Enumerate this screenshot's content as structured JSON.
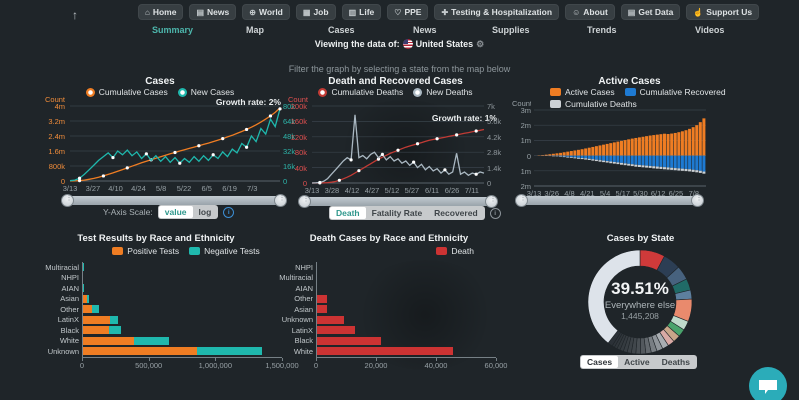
{
  "header": {
    "scroll_top_icon": "↑",
    "nav_buttons": [
      {
        "icon": "⌂",
        "label": "Home"
      },
      {
        "icon": "▤",
        "label": "News"
      },
      {
        "icon": "⊕",
        "label": "World"
      },
      {
        "icon": "▦",
        "label": "Job"
      },
      {
        "icon": "▥",
        "label": "Life"
      },
      {
        "icon": "♡",
        "label": "PPE"
      },
      {
        "icon": "✚",
        "label": "Testing & Hospitalization"
      },
      {
        "icon": "☺",
        "label": "About"
      },
      {
        "icon": "▤",
        "label": "Get Data"
      },
      {
        "icon": "☝",
        "label": "Support Us"
      }
    ],
    "tabs": [
      "Summary",
      "Map",
      "Cases",
      "News",
      "Supplies",
      "Trends",
      "Videos"
    ],
    "active_tab": "Summary",
    "viewing": {
      "label": "Viewing the data of:",
      "country": "United States",
      "gear_icon": "⚙"
    }
  },
  "filter_hint": "Filter the graph by selecting a state from the map below",
  "controls": {
    "y_axis_scale": {
      "label": "Y-Axis Scale:",
      "options": [
        "value",
        "log"
      ],
      "selected": "value"
    },
    "death_tabs": {
      "options": [
        "Death",
        "Fatality Rate",
        "Recovered"
      ],
      "selected": "Death"
    },
    "state_tabs": {
      "options": [
        "Cases",
        "Active",
        "Deaths"
      ],
      "selected": "Cases"
    }
  },
  "chart_data": [
    {
      "type": "line",
      "title": "Cases",
      "growth_label": "Growth rate: 2%",
      "y_left": {
        "title": "Count",
        "ticks": [
          "4m",
          "3.2m",
          "2.4m",
          "1.6m",
          "800k",
          "0"
        ],
        "max": 4,
        "color": "#f08c3a"
      },
      "y_right": {
        "ticks": [
          "80k",
          "64k",
          "48k",
          "32k",
          "16k",
          "0"
        ],
        "max": 80,
        "color": "#2eb5aa"
      },
      "x_ticks": [
        "3/13",
        "3/27",
        "4/10",
        "4/24",
        "5/8",
        "5/22",
        "6/5",
        "6/19",
        "7/3"
      ],
      "series": [
        {
          "name": "Cumulative Cases",
          "axis": "left",
          "color": "#ef7d23",
          "values": [
            0,
            0.01,
            0.02,
            0.05,
            0.09,
            0.14,
            0.2,
            0.27,
            0.35,
            0.43,
            0.52,
            0.61,
            0.7,
            0.79,
            0.88,
            0.97,
            1.05,
            1.13,
            1.21,
            1.29,
            1.37,
            1.45,
            1.52,
            1.6,
            1.67,
            1.74,
            1.81,
            1.88,
            1.95,
            2.02,
            2.1,
            2.18,
            2.26,
            2.35,
            2.44,
            2.54,
            2.64,
            2.75,
            2.87,
            3.0,
            3.14,
            3.3,
            3.47,
            3.66,
            3.9
          ]
        },
        {
          "name": "New Cases",
          "axis": "right",
          "color": "#1fb8ad",
          "values": [
            0.3,
            1,
            3,
            7,
            12,
            17,
            22,
            26,
            30,
            25,
            32,
            28,
            33,
            27,
            31,
            24,
            29,
            22,
            27,
            21,
            26,
            20,
            25,
            19,
            24,
            20,
            26,
            21,
            27,
            22,
            28,
            24,
            31,
            26,
            34,
            30,
            40,
            36,
            48,
            42,
            56,
            50,
            66,
            58,
            77
          ]
        }
      ]
    },
    {
      "type": "line",
      "title": "Death and Recovered Cases",
      "growth_label": "Growth rate: 1%",
      "y_left": {
        "title": "Count",
        "ticks": [
          "200k",
          "160k",
          "120k",
          "80k",
          "40k",
          "0"
        ],
        "max": 200,
        "color": "#e05050"
      },
      "y_right": {
        "ticks": [
          "7k",
          "5.6k",
          "4.2k",
          "2.8k",
          "1.4k",
          "0"
        ],
        "max": 7,
        "color": "#8f979c"
      },
      "x_ticks": [
        "3/13",
        "3/28",
        "4/12",
        "4/27",
        "5/12",
        "5/27",
        "6/11",
        "6/26",
        "7/11"
      ],
      "series": [
        {
          "name": "Cumulative Deaths",
          "axis": "left",
          "color": "#c23b35",
          "values": [
            0,
            0.1,
            0.2,
            0.5,
            1,
            2,
            4,
            7,
            11,
            15,
            20,
            26,
            32,
            38,
            44,
            50,
            56,
            62,
            67,
            72,
            77,
            81,
            85,
            89,
            93,
            96,
            99,
            102,
            105,
            108,
            111,
            113,
            115,
            117,
            119,
            121,
            123,
            125,
            127,
            129,
            131,
            133,
            135,
            137,
            139
          ]
        },
        {
          "name": "New Deaths",
          "axis": "right",
          "color": "#aab8c2",
          "values": [
            0,
            0.02,
            0.05,
            0.15,
            0.4,
            0.8,
            1.2,
            1.6,
            2.0,
            2.3,
            2.1,
            6.2,
            2.3,
            2.5,
            2.2,
            2.6,
            2.8,
            2.3,
            2.6,
            2.1,
            2.4,
            2.0,
            2.2,
            1.8,
            2.0,
            1.6,
            1.9,
            1.4,
            1.7,
            1.2,
            1.5,
            1.1,
            1.3,
            0.9,
            1.2,
            0.8,
            1.0,
            2.7,
            0.8,
            1.0,
            0.7,
            0.9,
            0.8,
            1.0,
            0.9
          ]
        }
      ]
    },
    {
      "type": "bar",
      "title": "Active Cases",
      "y_axis": {
        "title": "Count",
        "ticks": [
          "3m",
          "2m",
          "1m",
          "0",
          "1m",
          "2m"
        ],
        "range": [
          -2,
          3
        ],
        "color": "#97a0a5"
      },
      "x_ticks": [
        "3/13",
        "3/26",
        "4/8",
        "4/21",
        "5/4",
        "5/17",
        "5/30",
        "6/12",
        "6/25",
        "7/8"
      ],
      "series": [
        {
          "name": "Active Cases",
          "color": "#ef7d23",
          "direction": "up",
          "values": [
            0,
            0.02,
            0.04,
            0.06,
            0.09,
            0.12,
            0.15,
            0.18,
            0.22,
            0.26,
            0.3,
            0.34,
            0.38,
            0.42,
            0.47,
            0.52,
            0.57,
            0.62,
            0.67,
            0.72,
            0.77,
            0.82,
            0.87,
            0.92,
            0.97,
            1.02,
            1.07,
            1.12,
            1.16,
            1.2,
            1.24,
            1.28,
            1.32,
            1.35,
            1.38,
            1.41,
            1.44,
            1.42,
            1.45,
            1.49,
            1.54,
            1.6,
            1.67,
            1.76,
            1.87,
            2.0,
            2.2,
            2.45
          ]
        },
        {
          "name": "Cumulative Recovered",
          "color": "#1e7ad2",
          "direction": "down",
          "values": [
            0,
            0,
            0.01,
            0.01,
            0.02,
            0.03,
            0.04,
            0.05,
            0.06,
            0.08,
            0.1,
            0.12,
            0.14,
            0.16,
            0.18,
            0.21,
            0.24,
            0.27,
            0.3,
            0.33,
            0.36,
            0.39,
            0.42,
            0.45,
            0.48,
            0.51,
            0.54,
            0.57,
            0.6,
            0.62,
            0.64,
            0.66,
            0.68,
            0.7,
            0.72,
            0.74,
            0.76,
            0.78,
            0.8,
            0.82,
            0.84,
            0.86,
            0.88,
            0.9,
            0.93,
            0.96,
            1.0,
            1.05
          ]
        },
        {
          "name": "Cumulative Deaths",
          "color": "#ccd1d5",
          "direction": "down",
          "values": [
            0,
            0,
            0,
            0.01,
            0.01,
            0.02,
            0.02,
            0.03,
            0.04,
            0.05,
            0.05,
            0.06,
            0.07,
            0.07,
            0.08,
            0.08,
            0.09,
            0.09,
            0.1,
            0.1,
            0.1,
            0.11,
            0.11,
            0.11,
            0.12,
            0.12,
            0.12,
            0.12,
            0.13,
            0.13,
            0.13,
            0.13,
            0.13,
            0.14,
            0.14,
            0.14,
            0.14,
            0.14,
            0.14,
            0.14,
            0.14,
            0.14,
            0.14,
            0.14,
            0.14,
            0.14,
            0.14,
            0.14
          ]
        }
      ]
    },
    {
      "type": "bar",
      "title": "Test Results by Race and Ethnicity",
      "orientation": "horizontal",
      "categories": [
        "Multiracial",
        "NHPI",
        "AIAN",
        "Asian",
        "Other",
        "LatinX",
        "Black",
        "White",
        "Unknown"
      ],
      "x_ticks": [
        "0",
        "500,000",
        "1,000,000",
        "1,500,000"
      ],
      "xmax": 1500000,
      "series": [
        {
          "name": "Positive Tests",
          "color": "#ef7d23",
          "values": [
            8000,
            3000,
            11000,
            36000,
            78000,
            208000,
            200000,
            389000,
            861000
          ]
        },
        {
          "name": "Negative Tests",
          "color": "#1fb8ad",
          "values": [
            2000,
            1000,
            3000,
            14000,
            47000,
            61000,
            92000,
            264000,
            486000
          ]
        }
      ]
    },
    {
      "type": "bar",
      "title": "Death Cases by Race and Ethnicity",
      "orientation": "horizontal",
      "categories": [
        "NHPI",
        "Multiracial",
        "AIAN",
        "Other",
        "Asian",
        "Unknown",
        "LatinX",
        "Black",
        "White"
      ],
      "x_ticks": [
        "0",
        "20,000",
        "40,000",
        "60,000"
      ],
      "xmax": 60000,
      "series": [
        {
          "name": "Death",
          "color": "#cc3333",
          "values": [
            150,
            250,
            350,
            3500,
            3700,
            9400,
            13000,
            21600,
            45800
          ]
        }
      ]
    },
    {
      "type": "pie",
      "title": "Cases by State",
      "center": {
        "pct": "39.51%",
        "label": "Everywhere else",
        "value": "1,445,208"
      },
      "slices": [
        {
          "pct": 7.8,
          "color": "#cf3a3a"
        },
        {
          "pct": 5.5,
          "color": "#2c3e54"
        },
        {
          "pct": 4.4,
          "color": "#47627e"
        },
        {
          "pct": 3.6,
          "color": "#206b67"
        },
        {
          "pct": 2.8,
          "color": "#5d7f9e"
        },
        {
          "pct": 7.0,
          "color": "#e98a6d"
        },
        {
          "pct": 2.9,
          "color": "#bfdacb"
        },
        {
          "pct": 2.4,
          "color": "#4aa36c"
        },
        {
          "pct": 2.3,
          "color": "#c9a689"
        },
        {
          "pct": 2.1,
          "color": "#d9aaa5"
        },
        {
          "pct": 2.0,
          "color": "#a9aeb2"
        },
        {
          "pct": 1.9,
          "color": "#8f959a"
        },
        {
          "pct": 1.8,
          "color": "#787e83"
        },
        {
          "pct": 1.7,
          "color": "#62686d"
        },
        {
          "pct": 1.6,
          "color": "#53595e"
        },
        {
          "pct": 1.5,
          "color": "#484e53"
        },
        {
          "pct": 1.4,
          "color": "#41474c"
        },
        {
          "pct": 1.3,
          "color": "#3c4247"
        },
        {
          "pct": 1.2,
          "color": "#383e43"
        },
        {
          "pct": 1.1,
          "color": "#353b40"
        },
        {
          "pct": 1.0,
          "color": "#32383d"
        },
        {
          "pct": 0.9,
          "color": "#30363b"
        },
        {
          "pct": 0.8,
          "color": "#2e343a"
        },
        {
          "pct": 1.49,
          "color": "#2b3137"
        },
        {
          "pct": 39.51,
          "color": "#dde3ea",
          "label": "Everywhere else"
        }
      ]
    }
  ]
}
